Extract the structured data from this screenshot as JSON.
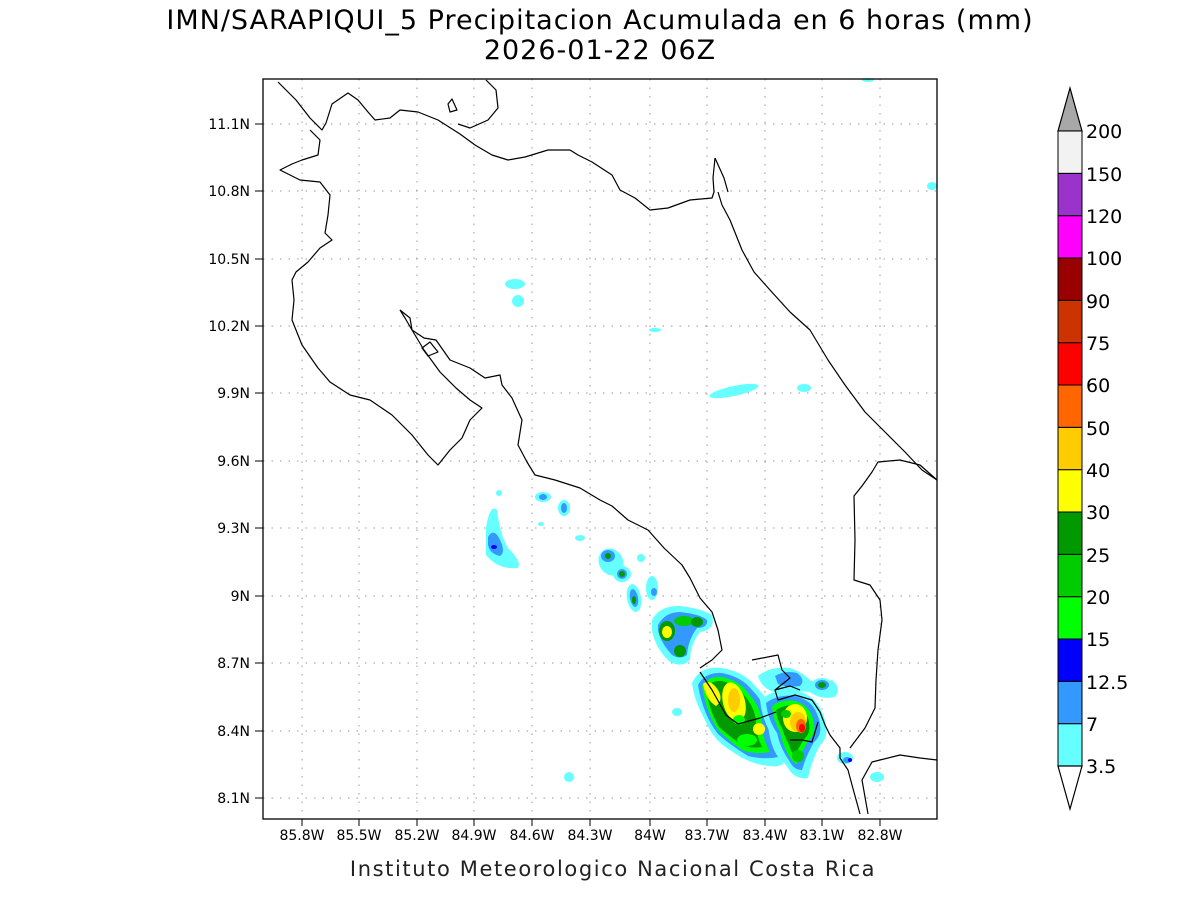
{
  "map": {
    "title_line1": "IMN/SARAPIQUI_5 Precipitacion Acumulada en 6 horas (mm)",
    "title_line2": "2026-01-22 06Z",
    "footer": "Instituto Meteorologico Nacional Costa Rica",
    "lat_ticks": [
      "11.1N",
      "10.8N",
      "10.5N",
      "10.2N",
      "9.9N",
      "9.6N",
      "9.3N",
      "9N",
      "8.7N",
      "8.4N",
      "8.1N"
    ],
    "lon_ticks": [
      "85.8W",
      "85.5W",
      "85.2W",
      "84.9W",
      "84.6W",
      "84.3W",
      "84W",
      "83.7W",
      "83.4W",
      "83.1W",
      "82.8W"
    ]
  },
  "colorbar": {
    "levels": [
      "3.5",
      "7",
      "12.5",
      "15",
      "20",
      "25",
      "30",
      "40",
      "50",
      "60",
      "75",
      "90",
      "100",
      "120",
      "150",
      "200"
    ],
    "colors": [
      "#66ffff",
      "#3399ff",
      "#0000ff",
      "#00ff00",
      "#00cc00",
      "#009900",
      "#ffff00",
      "#ffcc00",
      "#ff6600",
      "#ff0000",
      "#cc3300",
      "#990000",
      "#ff00ff",
      "#9933cc",
      "#f2f2f2"
    ],
    "under_color": "#ffffff",
    "over_color": "#a8a8a8"
  }
}
